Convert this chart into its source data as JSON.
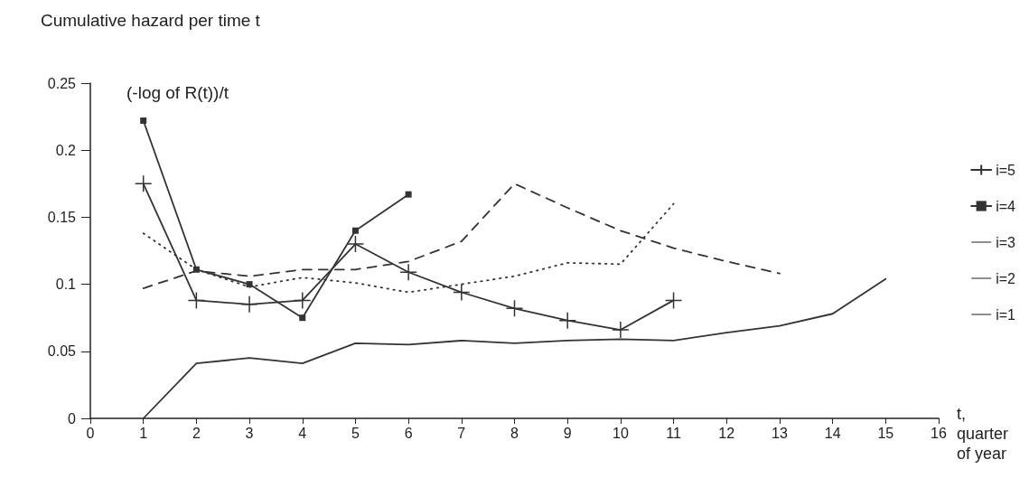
{
  "chart_data": {
    "type": "line",
    "title": "Cumulative hazard per time t",
    "ylabel": "(-log of R(t))/t",
    "xlabel": "t,\nquarter\nof year",
    "xlim": [
      0,
      16
    ],
    "xticks": [
      0,
      1,
      2,
      3,
      4,
      5,
      6,
      7,
      8,
      9,
      10,
      11,
      12,
      13,
      14,
      15,
      16
    ],
    "ylim": [
      0,
      0.25
    ],
    "yticks": [
      0,
      0.05,
      0.1,
      0.15,
      0.2,
      0.25
    ],
    "grid": false,
    "legend": "right",
    "series": [
      {
        "name": "i=5",
        "color": "#333333",
        "marker": "cross",
        "line_style": "solid",
        "x": [
          1,
          2,
          3,
          4,
          5,
          6,
          7,
          8,
          9,
          10,
          11
        ],
        "values": [
          0.175,
          0.088,
          0.085,
          0.088,
          0.13,
          0.109,
          0.094,
          0.082,
          0.073,
          0.066,
          0.088
        ]
      },
      {
        "name": "i=4",
        "color": "#333333",
        "marker": "square",
        "line_style": "solid",
        "x": [
          1,
          2,
          3,
          4,
          5,
          6
        ],
        "values": [
          0.222,
          0.111,
          0.1,
          0.075,
          0.14,
          0.167
        ]
      },
      {
        "name": "i=3",
        "color": "#333333",
        "marker": "none",
        "line_style": "dashed",
        "x": [
          1,
          2,
          3,
          4,
          5,
          6,
          7,
          8,
          9,
          10,
          11,
          12,
          13
        ],
        "values": [
          0.097,
          0.11,
          0.106,
          0.111,
          0.111,
          0.117,
          0.132,
          0.175,
          0.157,
          0.14,
          0.127,
          0.117,
          0.108
        ]
      },
      {
        "name": "i=2",
        "color": "#333333",
        "marker": "none",
        "line_style": "dotted",
        "x": [
          1,
          2,
          3,
          4,
          5,
          6,
          7,
          8,
          9,
          10,
          11
        ],
        "values": [
          0.138,
          0.111,
          0.098,
          0.105,
          0.101,
          0.094,
          0.1,
          0.106,
          0.116,
          0.115,
          0.16
        ]
      },
      {
        "name": "i=1",
        "color": "#333333",
        "marker": "none",
        "line_style": "solid",
        "x": [
          1,
          2,
          3,
          4,
          5,
          6,
          7,
          8,
          9,
          10,
          11,
          12,
          13,
          14,
          15
        ],
        "values": [
          0,
          0.041,
          0.045,
          0.041,
          0.056,
          0.055,
          0.058,
          0.056,
          0.058,
          0.059,
          0.058,
          0.064,
          0.069,
          0.078,
          0.104
        ]
      }
    ]
  }
}
